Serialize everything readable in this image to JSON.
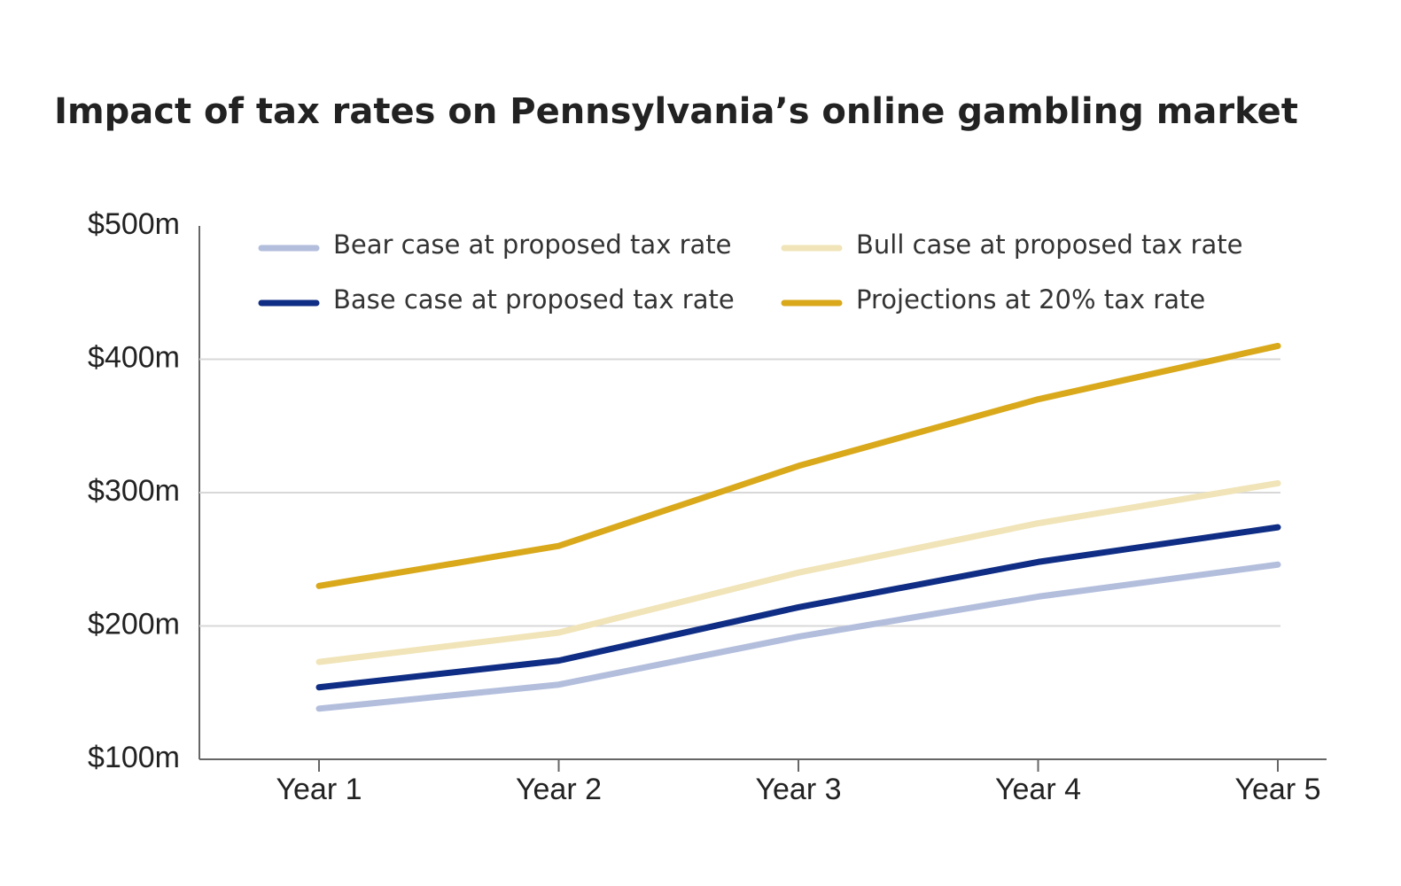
{
  "chart_data": {
    "type": "line",
    "title": "Impact of tax rates on Pennsylvania’s online gambling market",
    "categories": [
      "Year 1",
      "Year 2",
      "Year 3",
      "Year 4",
      "Year 5"
    ],
    "series": [
      {
        "name": "Bear case at proposed tax rate",
        "color": "#b3bedd",
        "values": [
          138,
          156,
          192,
          222,
          246
        ]
      },
      {
        "name": "Base case at proposed tax rate",
        "color": "#0f2d84",
        "values": [
          154,
          174,
          214,
          248,
          274
        ]
      },
      {
        "name": "Bull case at proposed tax rate",
        "color": "#f0e4b8",
        "values": [
          173,
          195,
          240,
          277,
          307
        ]
      },
      {
        "name": "Projections at 20% tax rate",
        "color": "#d9a91b",
        "values": [
          230,
          260,
          320,
          370,
          410
        ]
      }
    ],
    "ylim": [
      100,
      500
    ],
    "yticks": [
      {
        "value": 100,
        "label": "$100m"
      },
      {
        "value": 200,
        "label": "$200m"
      },
      {
        "value": 300,
        "label": "$300m"
      },
      {
        "value": 400,
        "label": "$400m"
      },
      {
        "value": 500,
        "label": "$500m"
      }
    ],
    "grid": true,
    "legend": "top"
  }
}
